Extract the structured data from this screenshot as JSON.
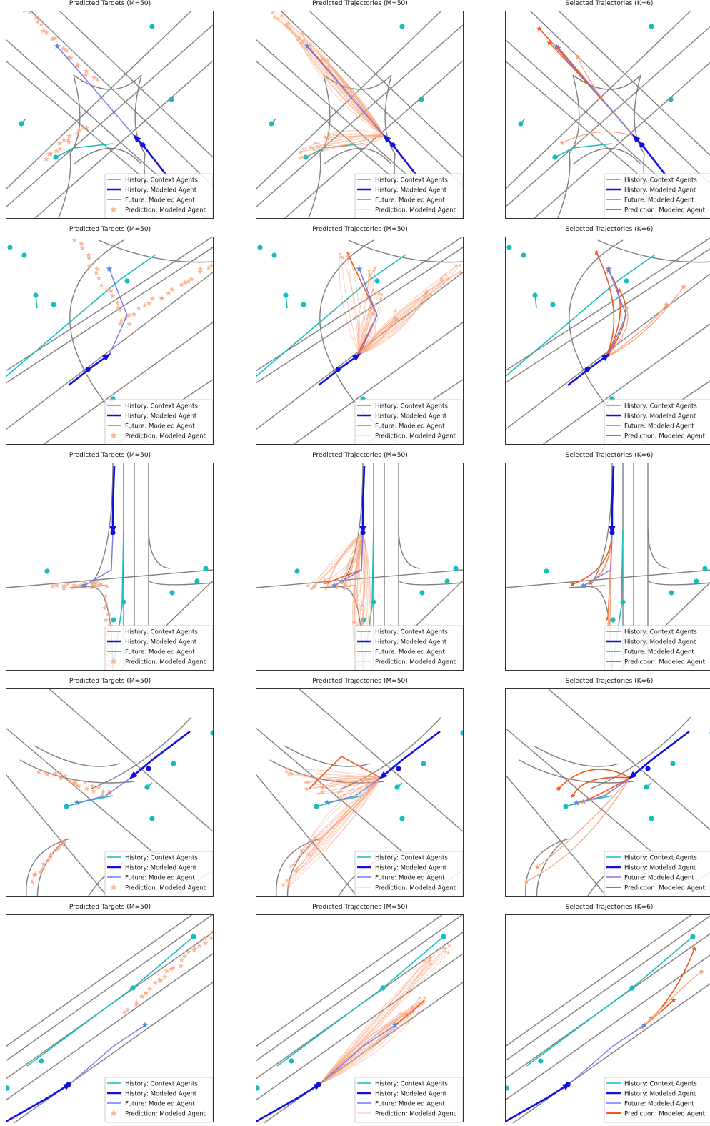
{
  "legend": {
    "context": "History: Context Agents",
    "history": "History: Modeled Agent",
    "future": "Future: Modeled Agent",
    "prediction": "Prediction: Modeled Agent"
  },
  "colors": {
    "context": "#17bcbc",
    "history": "#1010e0",
    "future": "#7777ee",
    "prediction_light": "#f9a27a",
    "prediction_dark": "#ee5a20",
    "road": "#808080",
    "frame": "#333333"
  },
  "columns": [
    {
      "title": "Predicted Targets (M=50)",
      "mode": "targets",
      "pred_legend_style": "star"
    },
    {
      "title": "Predicted Trajectories (M=50)",
      "mode": "trajectories",
      "pred_legend_style": "thin"
    },
    {
      "title": "Selected Trajectories (K=6)",
      "mode": "selected",
      "pred_legend_style": "thick"
    }
  ],
  "chart_data": [
    {
      "type": "scatter",
      "row": 1,
      "title": "Predicted Targets (M=50)",
      "panel_kind": "targets",
      "series": [
        "History: Context Agents",
        "History: Modeled Agent",
        "Future: Modeled Agent",
        "Prediction: Modeled Agent"
      ]
    },
    {
      "type": "line",
      "row": 1,
      "title": "Predicted Trajectories (M=50)",
      "panel_kind": "trajectories",
      "series": [
        "History: Context Agents",
        "History: Modeled Agent",
        "Future: Modeled Agent",
        "Prediction: Modeled Agent"
      ]
    },
    {
      "type": "line",
      "row": 1,
      "title": "Selected Trajectories (K=6)",
      "panel_kind": "selected",
      "series": [
        "History: Context Agents",
        "History: Modeled Agent",
        "Future: Modeled Agent",
        "Prediction: Modeled Agent"
      ]
    },
    {
      "type": "scatter",
      "row": 2,
      "title": "Predicted Targets (M=50)",
      "panel_kind": "targets",
      "series": [
        "History: Context Agents",
        "History: Modeled Agent",
        "Future: Modeled Agent",
        "Prediction: Modeled Agent"
      ]
    },
    {
      "type": "line",
      "row": 2,
      "title": "Predicted Trajectories (M=50)",
      "panel_kind": "trajectories",
      "series": [
        "History: Context Agents",
        "History: Modeled Agent",
        "Future: Modeled Agent",
        "Prediction: Modeled Agent"
      ]
    },
    {
      "type": "line",
      "row": 2,
      "title": "Selected Trajectories (K=6)",
      "panel_kind": "selected",
      "series": [
        "History: Context Agents",
        "History: Modeled Agent",
        "Future: Modeled Agent",
        "Prediction: Modeled Agent"
      ]
    },
    {
      "type": "scatter",
      "row": 3,
      "title": "Predicted Targets (M=50)",
      "panel_kind": "targets",
      "series": [
        "History: Context Agents",
        "History: Modeled Agent",
        "Future: Modeled Agent",
        "Prediction: Modeled Agent"
      ]
    },
    {
      "type": "line",
      "row": 3,
      "title": "Predicted Trajectories (M=50)",
      "panel_kind": "trajectories",
      "series": [
        "History: Context Agents",
        "History: Modeled Agent",
        "Future: Modeled Agent",
        "Prediction: Modeled Agent"
      ]
    },
    {
      "type": "line",
      "row": 3,
      "title": "Selected Trajectories (K=6)",
      "panel_kind": "selected",
      "series": [
        "History: Context Agents",
        "History: Modeled Agent",
        "Future: Modeled Agent",
        "Prediction: Modeled Agent"
      ]
    },
    {
      "type": "scatter",
      "row": 4,
      "title": "Predicted Targets (M=50)",
      "panel_kind": "targets",
      "series": [
        "History: Context Agents",
        "History: Modeled Agent",
        "Future: Modeled Agent",
        "Prediction: Modeled Agent"
      ]
    },
    {
      "type": "line",
      "row": 4,
      "title": "Predicted Trajectories (M=50)",
      "panel_kind": "trajectories",
      "series": [
        "History: Context Agents",
        "History: Modeled Agent",
        "Future: Modeled Agent",
        "Prediction: Modeled Agent"
      ]
    },
    {
      "type": "line",
      "row": 4,
      "title": "Selected Trajectories (K=6)",
      "panel_kind": "selected",
      "series": [
        "History: Context Agents",
        "History: Modeled Agent",
        "Future: Modeled Agent",
        "Prediction: Modeled Agent"
      ]
    },
    {
      "type": "scatter",
      "row": 5,
      "title": "Predicted Targets (M=50)",
      "panel_kind": "targets",
      "series": [
        "History: Context Agents",
        "History: Modeled Agent",
        "Future: Modeled Agent",
        "Prediction: Modeled Agent"
      ]
    },
    {
      "type": "line",
      "row": 5,
      "title": "Predicted Trajectories (M=50)",
      "panel_kind": "trajectories",
      "series": [
        "History: Context Agents",
        "History: Modeled Agent",
        "Future: Modeled Agent",
        "Prediction: Modeled Agent"
      ]
    },
    {
      "type": "line",
      "row": 5,
      "title": "Selected Trajectories (K=6)",
      "panel_kind": "selected",
      "series": [
        "History: Context Agents",
        "History: Modeled Agent",
        "Future: Modeled Agent",
        "Prediction: Modeled Agent"
      ]
    }
  ]
}
